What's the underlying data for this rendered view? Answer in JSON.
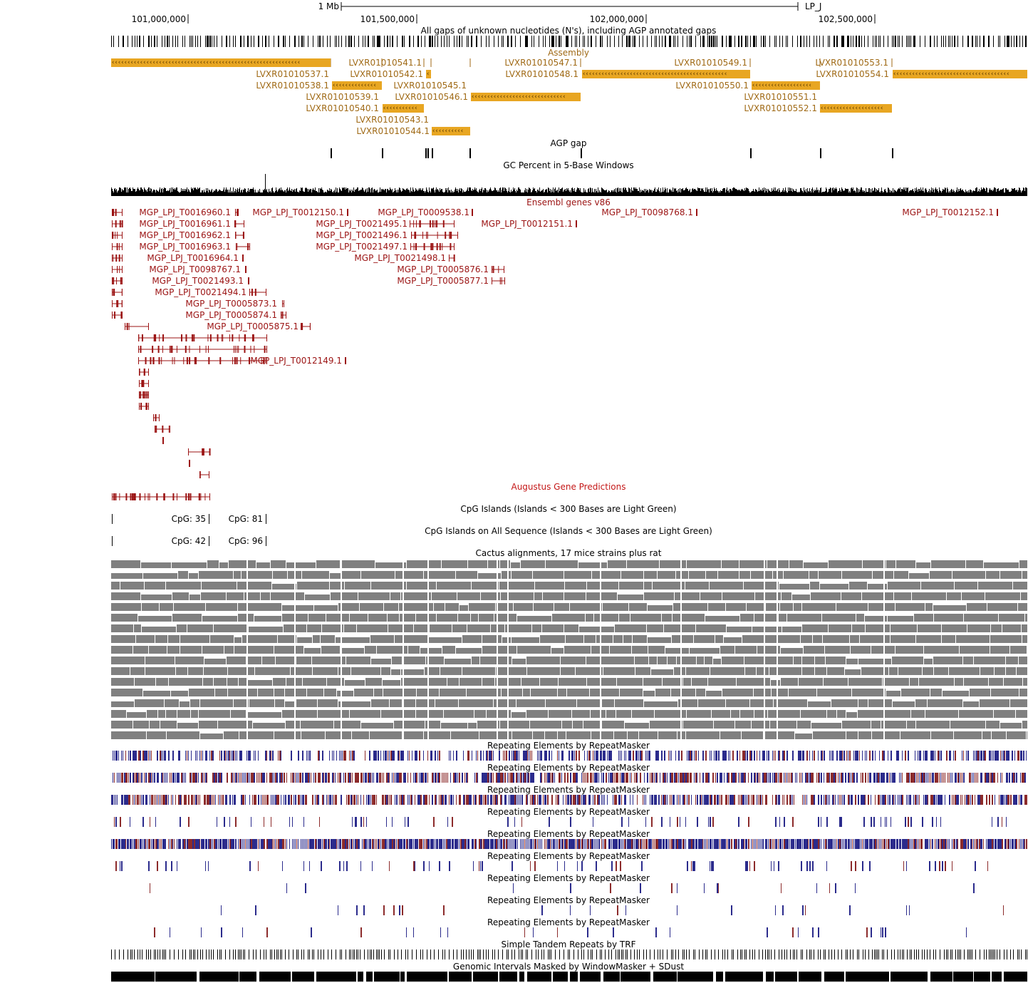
{
  "ruler": {
    "scale_label": "1 Mb",
    "chrom_label": "LP_J",
    "positions": [
      "101,000,000",
      "101,500,000",
      "102,000,000",
      "102,500,000"
    ]
  },
  "tracks": {
    "gaps": "All gaps of unknown nucleotides (N's), including AGP annotated gaps",
    "assembly": "Assembly",
    "agp_gap": "AGP gap",
    "gc": "GC Percent in 5-Base Windows",
    "ensembl": "Ensembl genes v86",
    "augustus": "Augustus Gene Predictions",
    "cpg1": "CpG Islands (Islands < 300 Bases are Light Green)",
    "cpg2": "CpG Islands on All Sequence (Islands < 300 Bases are Light Green)",
    "cactus": "Cactus alignments, 17 mice strains plus rat",
    "rmsk": "Repeating Elements by RepeatMasker",
    "trf": "Simple Tandem Repeats by TRF",
    "wm": "Genomic Intervals Masked by WindowMasker + SDust"
  },
  "assembly_items": [
    "LVXR01010537.1",
    "LVXR01010538.1",
    "LVXR01010539.1",
    "LVXR01010540.1",
    "LVXR01010541.1",
    "LVXR01010542.1",
    "LVXR01010543.1",
    "LVXR01010544.1",
    "LVXR01010545.1",
    "LVXR01010546.1",
    "LVXR01010547.1",
    "LVXR01010548.1",
    "LVXR01010549.1",
    "LVXR01010550.1",
    "LVXR01010551.1",
    "LVXR01010552.1",
    "LVXR01010553.1",
    "LVXR01010554.1"
  ],
  "ensembl_items": [
    "MGP_LPJ_T0016960.1",
    "MGP_LPJ_T0016961.1",
    "MGP_LPJ_T0016962.1",
    "MGP_LPJ_T0016963.1",
    "MGP_LPJ_T0016964.1",
    "MGP_LPJ_T0098767.1",
    "MGP_LPJ_T0021493.1",
    "MGP_LPJ_T0021494.1",
    "MGP_LPJ_T0005873.1",
    "MGP_LPJ_T0005874.1",
    "MGP_LPJ_T0005875.1",
    "MGP_LPJ_T0012149.1",
    "MGP_LPJ_T0012150.1",
    "MGP_LPJ_T0021495.1",
    "MGP_LPJ_T0021496.1",
    "MGP_LPJ_T0021497.1",
    "MGP_LPJ_T0021498.1",
    "MGP_LPJ_T0009538.1",
    "MGP_LPJ_T0005876.1",
    "MGP_LPJ_T0005877.1",
    "MGP_LPJ_T0012151.1",
    "MGP_LPJ_T0098768.1",
    "MGP_LPJ_T0012152.1"
  ],
  "cpg_items": [
    "CpG: 35",
    "CpG: 81",
    "CpG: 42",
    "CpG: 96"
  ],
  "colors": {
    "assembly": "#e8a622",
    "assembly_text": "#a06a16",
    "ensembl": "#9b1313",
    "augustus": "#c41717",
    "cactus": "#808080",
    "repeat_blue": "#2b2b8c",
    "repeat_red": "#8c2b2b"
  }
}
